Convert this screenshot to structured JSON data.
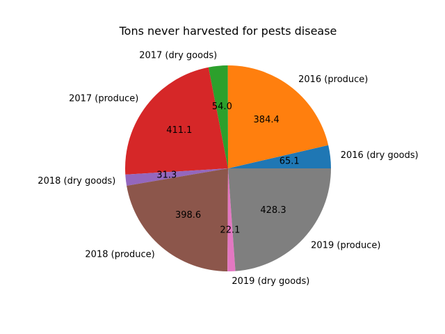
{
  "chart_data": {
    "type": "pie",
    "title": "Tons never harvested for pests disease",
    "categories": [
      "2016 (dry goods)",
      "2016 (produce)",
      "2017 (dry goods)",
      "2017 (produce)",
      "2018 (dry goods)",
      "2018 (produce)",
      "2019 (dry goods)",
      "2019 (produce)"
    ],
    "values": [
      65.1,
      384.4,
      54.0,
      411.1,
      31.3,
      398.6,
      22.1,
      428.3
    ],
    "value_labels": [
      "65.1",
      "384.4",
      "54.0",
      "411.1",
      "31.3",
      "398.6",
      "22.1",
      "428.3"
    ],
    "colors": [
      "#1f77b4",
      "#ff7f0e",
      "#2ca02c",
      "#d62728",
      "#9467bd",
      "#8c564b",
      "#e377c2",
      "#7f7f7f"
    ],
    "start_angle": "0 (east)",
    "direction": "counterclockwise",
    "legend": "none"
  }
}
